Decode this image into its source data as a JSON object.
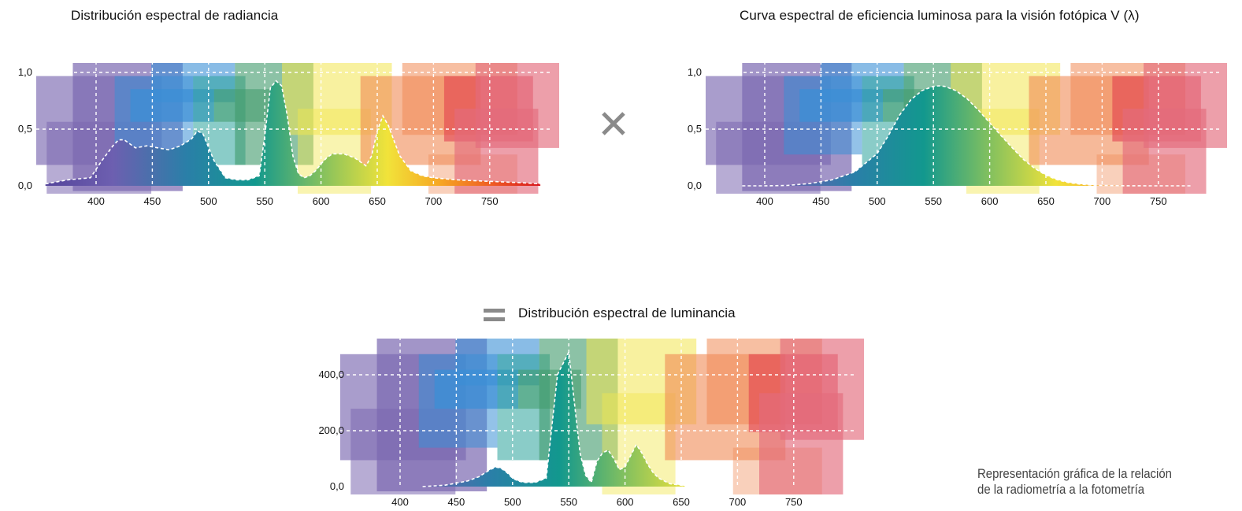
{
  "titles": {
    "radiance": "Distribución espectral de radiancia",
    "efficiency": "Curva espectral de eficiencia luminosa para la visión fotópica V (λ)",
    "luminance": "Distribución espectral de luminancia"
  },
  "operators": {
    "multiply": "×",
    "equals": "="
  },
  "caption": {
    "line1": "Representación gráfica de la relación",
    "line2": "de la radiometría a la fotometría"
  },
  "colors": {
    "violet": "#7b68b0",
    "blue": "#3a8fd6",
    "teal": "#2aa39a",
    "green": "#3f9a6a",
    "yellow": "#f2e650",
    "orange": "#f08a55",
    "red": "#e0364a",
    "pink": "#e46c7c"
  },
  "chart_data": [
    {
      "type": "area",
      "title": "Distribución espectral de radiancia",
      "x_ticks": [
        400,
        450,
        500,
        550,
        600,
        650,
        700,
        750
      ],
      "y_ticks": [
        "0,0",
        "0,5",
        "1,0"
      ],
      "xlim": [
        355,
        795
      ],
      "ylim": [
        0,
        1.15
      ],
      "grid": true,
      "x": [
        355,
        375,
        395,
        405,
        415,
        420,
        425,
        435,
        445,
        455,
        465,
        475,
        485,
        490,
        495,
        505,
        515,
        525,
        535,
        545,
        550,
        555,
        560,
        565,
        570,
        575,
        580,
        585,
        590,
        595,
        600,
        605,
        610,
        620,
        630,
        640,
        645,
        650,
        655,
        660,
        665,
        670,
        680,
        690,
        700,
        710,
        720,
        740,
        760,
        780,
        795
      ],
      "y": [
        0.02,
        0.06,
        0.08,
        0.25,
        0.4,
        0.46,
        0.46,
        0.38,
        0.4,
        0.38,
        0.36,
        0.4,
        0.47,
        0.55,
        0.52,
        0.25,
        0.08,
        0.06,
        0.06,
        0.1,
        0.5,
        0.98,
        1.05,
        1.0,
        0.7,
        0.3,
        0.12,
        0.08,
        0.1,
        0.15,
        0.22,
        0.28,
        0.32,
        0.32,
        0.28,
        0.2,
        0.3,
        0.55,
        0.7,
        0.6,
        0.45,
        0.3,
        0.15,
        0.1,
        0.08,
        0.07,
        0.06,
        0.05,
        0.04,
        0.03,
        0.02
      ]
    },
    {
      "type": "area",
      "title": "Curva espectral de eficiencia luminosa para la visión fotópica V (λ)",
      "x_ticks": [
        400,
        450,
        500,
        550,
        600,
        650,
        700,
        750
      ],
      "y_ticks": [
        "0,0",
        "0,5",
        "1,0"
      ],
      "xlim": [
        355,
        795
      ],
      "ylim": [
        0,
        1.15
      ],
      "grid": true,
      "x": [
        380,
        400,
        420,
        440,
        460,
        480,
        500,
        510,
        520,
        530,
        540,
        550,
        555,
        560,
        570,
        580,
        590,
        600,
        610,
        620,
        630,
        640,
        650,
        660,
        670,
        680,
        690,
        700,
        720,
        740,
        760,
        780
      ],
      "y": [
        0.0,
        0.0,
        0.004,
        0.023,
        0.06,
        0.139,
        0.323,
        0.503,
        0.71,
        0.862,
        0.954,
        0.995,
        1.0,
        0.995,
        0.952,
        0.87,
        0.757,
        0.631,
        0.503,
        0.381,
        0.265,
        0.175,
        0.107,
        0.061,
        0.032,
        0.017,
        0.008,
        0.004,
        0.001,
        0.0,
        0.0,
        0.0
      ]
    },
    {
      "type": "area",
      "title": "Distribución espectral de luminancia",
      "x_ticks": [
        400,
        450,
        500,
        550,
        600,
        650,
        700,
        750
      ],
      "y_ticks": [
        "0,0",
        "200,0",
        "400,0"
      ],
      "xlim": [
        355,
        795
      ],
      "ylim": [
        0,
        500
      ],
      "grid": true,
      "x": [
        420,
        440,
        460,
        470,
        480,
        485,
        490,
        495,
        500,
        505,
        510,
        520,
        530,
        540,
        545,
        550,
        555,
        560,
        565,
        570,
        575,
        580,
        585,
        590,
        595,
        600,
        605,
        610,
        615,
        620,
        625,
        630,
        635,
        640,
        650,
        655
      ],
      "y": [
        0,
        5,
        20,
        35,
        60,
        70,
        65,
        50,
        30,
        20,
        15,
        15,
        30,
        400,
        440,
        480,
        300,
        120,
        40,
        15,
        90,
        120,
        130,
        100,
        60,
        70,
        110,
        150,
        120,
        80,
        50,
        30,
        20,
        10,
        5,
        0
      ]
    }
  ]
}
